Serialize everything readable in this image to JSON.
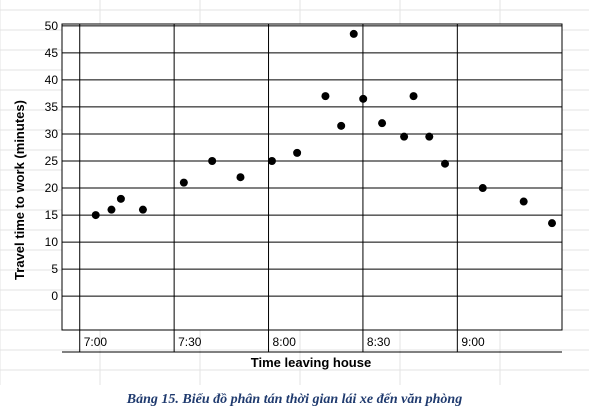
{
  "chart_data": {
    "type": "scatter",
    "title": "",
    "xlabel": "Time leaving house",
    "ylabel": "Travel time to work (minutes)",
    "x_tick_labels": [
      "7:00",
      "7:30",
      "8:00",
      "8:30",
      "9:00"
    ],
    "x_ticks": [
      0,
      30,
      60,
      90,
      120
    ],
    "xlim": [
      -5,
      145
    ],
    "y_ticks": [
      0,
      5,
      10,
      15,
      20,
      25,
      30,
      35,
      40,
      45,
      50
    ],
    "ylim": [
      -2,
      52
    ],
    "grid": true,
    "marker_color": "#000000",
    "points": [
      {
        "x": 0,
        "y": 15
      },
      {
        "x": 5,
        "y": 16
      },
      {
        "x": 8,
        "y": 18
      },
      {
        "x": 15,
        "y": 16
      },
      {
        "x": 28,
        "y": 21
      },
      {
        "x": 37,
        "y": 25
      },
      {
        "x": 46,
        "y": 22
      },
      {
        "x": 56,
        "y": 25
      },
      {
        "x": 64,
        "y": 26.5
      },
      {
        "x": 73,
        "y": 37
      },
      {
        "x": 78,
        "y": 31.5
      },
      {
        "x": 82,
        "y": 48.5
      },
      {
        "x": 85,
        "y": 36.5
      },
      {
        "x": 91,
        "y": 32
      },
      {
        "x": 98,
        "y": 29.5
      },
      {
        "x": 101,
        "y": 37
      },
      {
        "x": 106,
        "y": 29.5
      },
      {
        "x": 111,
        "y": 24.5
      },
      {
        "x": 123,
        "y": 20
      },
      {
        "x": 136,
        "y": 17.5
      },
      {
        "x": 145,
        "y": 13.5
      }
    ]
  },
  "caption": "Bảng 15. Biểu đồ phân tán thời gian lái xe đến văn phòng"
}
